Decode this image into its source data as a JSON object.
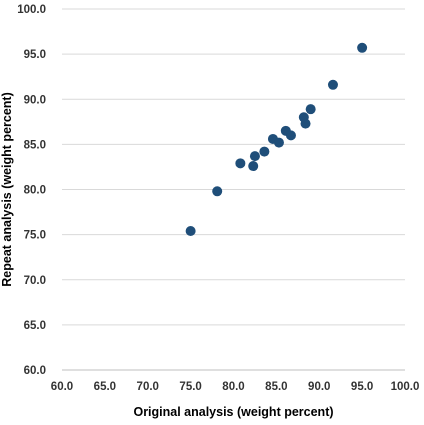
{
  "chart_data": {
    "type": "scatter",
    "title": "",
    "xlabel": "Original analysis (weight percent)",
    "ylabel": "Repeat analysis (weight percent)",
    "xlim": [
      60,
      100
    ],
    "ylim": [
      60,
      100
    ],
    "x_ticks": [
      "60.0",
      "65.0",
      "70.0",
      "75.0",
      "80.0",
      "85.0",
      "90.0",
      "95.0",
      "100.0"
    ],
    "y_ticks": [
      "60.0",
      "65.0",
      "70.0",
      "75.0",
      "80.0",
      "85.0",
      "90.0",
      "95.0",
      "100.0"
    ],
    "grid": "horizontal",
    "legend": "none",
    "marker_color": "#1f4e79",
    "series": [
      {
        "points": [
          {
            "x": 75.0,
            "y": 75.4
          },
          {
            "x": 78.1,
            "y": 79.8
          },
          {
            "x": 80.8,
            "y": 82.9
          },
          {
            "x": 82.3,
            "y": 82.6
          },
          {
            "x": 82.5,
            "y": 83.7
          },
          {
            "x": 83.6,
            "y": 84.2
          },
          {
            "x": 84.6,
            "y": 85.6
          },
          {
            "x": 85.3,
            "y": 85.2
          },
          {
            "x": 86.1,
            "y": 86.5
          },
          {
            "x": 86.7,
            "y": 86.0
          },
          {
            "x": 88.2,
            "y": 88.0
          },
          {
            "x": 88.4,
            "y": 87.3
          },
          {
            "x": 89.0,
            "y": 88.9
          },
          {
            "x": 91.6,
            "y": 91.6
          },
          {
            "x": 95.0,
            "y": 95.7
          }
        ]
      }
    ]
  }
}
